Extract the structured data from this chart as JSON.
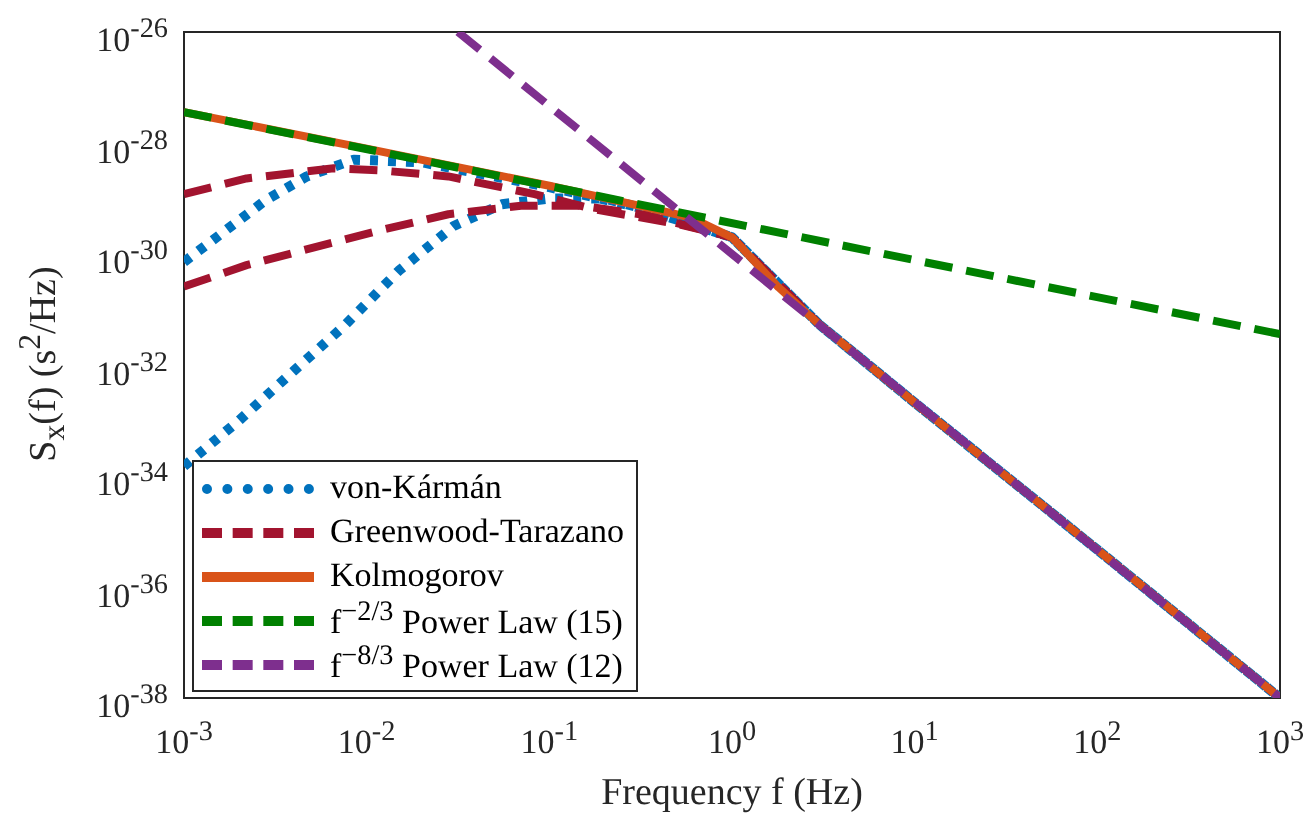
{
  "chart_data": {
    "type": "line",
    "xlabel": "Frequency f (Hz)",
    "ylabel": "S$_{x}$(f) (s$^{2}$/Hz)",
    "log": "xy",
    "grid": false,
    "legend": "bottom left",
    "marker": "none",
    "xlim": [
      0.001,
      1000
    ],
    "ylim": [
      1e-38,
      1e-26
    ],
    "xticks": [
      {
        "value": 0.001,
        "label": "10$^{-3}$"
      },
      {
        "value": 0.01,
        "label": "10$^{-2}$"
      },
      {
        "value": 0.1,
        "label": "10$^{-1}$"
      },
      {
        "value": 1,
        "label": "10$^{0}$"
      },
      {
        "value": 10,
        "label": "10$^{1}$"
      },
      {
        "value": 100,
        "label": "10$^{2}$"
      },
      {
        "value": 1000,
        "label": "10$^{3}$"
      }
    ],
    "yticks": [
      {
        "value": 1e-38,
        "label": "10$^{-38}$"
      },
      {
        "value": 1e-36,
        "label": "10$^{-36}$"
      },
      {
        "value": 1e-34,
        "label": "10$^{-34}$"
      },
      {
        "value": 1e-32,
        "label": "10$^{-32}$"
      },
      {
        "value": 1e-30,
        "label": "10$^{-30}$"
      },
      {
        "value": 1e-28,
        "label": "10$^{-28}$"
      },
      {
        "value": 1e-26,
        "label": "10$^{-26}$"
      }
    ],
    "series": [
      {
        "name": "von-Kármán",
        "color": "#0072bd",
        "line_style": "dotted",
        "x": [
          0.001,
          0.0017,
          0.0028,
          0.0047,
          0.0085,
          0.02,
          0.05,
          0.1,
          0.3,
          1,
          3,
          10,
          100,
          1000
        ],
        "values": [
          7.2e-31,
          2.7e-30,
          9.3e-30,
          2.5e-29,
          5e-29,
          4.5e-29,
          2.5e-29,
          1.6e-29,
          7.1e-30,
          2e-30,
          5.4e-32,
          2.1e-33,
          4.7e-36,
          1e-38
        ]
      },
      {
        "color": "#0072bd",
        "line_style": "dotted",
        "x": [
          0.001,
          0.002,
          0.004,
          0.0075,
          0.015,
          0.03,
          0.055,
          0.1,
          0.2,
          0.3,
          1,
          3,
          10,
          100,
          1000
        ],
        "values": [
          1.5e-34,
          1e-33,
          7.9e-33,
          5e-32,
          5e-31,
          3.2e-30,
          7.9e-30,
          1e-29,
          1e-29,
          7.1e-30,
          2e-30,
          5.4e-32,
          2.1e-33,
          4.7e-36,
          1e-38
        ]
      },
      {
        "name": "Greenwood-Tarazano",
        "color": "#a2142f",
        "line_style": "dashed",
        "x": [
          0.001,
          0.0022,
          0.0066,
          0.012,
          0.028,
          0.083,
          0.18,
          0.5,
          1,
          3,
          10,
          100,
          1000
        ],
        "values": [
          1.2e-29,
          2.3e-29,
          3.5e-29,
          3.2e-29,
          2.5e-29,
          1.2e-29,
          6.3e-30,
          3.5e-30,
          2e-30,
          5.4e-32,
          2.1e-33,
          4.7e-36,
          1e-38
        ]
      },
      {
        "color": "#a2142f",
        "line_style": "dashed",
        "x": [
          0.001,
          0.0022,
          0.0051,
          0.012,
          0.028,
          0.07,
          0.15,
          0.34,
          1,
          3,
          10,
          100,
          1000
        ],
        "values": [
          2.6e-31,
          6.3e-31,
          1.3e-30,
          2.7e-30,
          5.2e-30,
          7.4e-30,
          7.4e-30,
          5e-30,
          2e-30,
          5.4e-32,
          2.1e-33,
          4.7e-36,
          1e-38
        ]
      },
      {
        "name": "Kolmogorov",
        "color": "#d95319",
        "line_style": "solid",
        "x": [
          0.001,
          0.01,
          0.1,
          0.3,
          0.6,
          1,
          1.8,
          3,
          10,
          100,
          1000
        ],
        "values": [
          3.6e-28,
          7.9e-29,
          1.7e-29,
          7.6e-30,
          4.5e-30,
          2e-30,
          2.5e-31,
          5.4e-32,
          2.1e-33,
          4.7e-36,
          1e-38
        ]
      },
      {
        "name": "f$^{−2/3}$ Power Law (15)",
        "color": "#008000",
        "line_style": "dashed",
        "x": [
          0.001,
          1000
        ],
        "values": [
          3.6e-28,
          3.6e-32
        ]
      },
      {
        "name": "f$^{−8/3}$ Power Law (12)",
        "color": "#7e2f8e",
        "line_style": "dashed",
        "x": [
          0.0316,
          1000
        ],
        "values": [
          1e-26,
          1e-38
        ]
      }
    ]
  }
}
